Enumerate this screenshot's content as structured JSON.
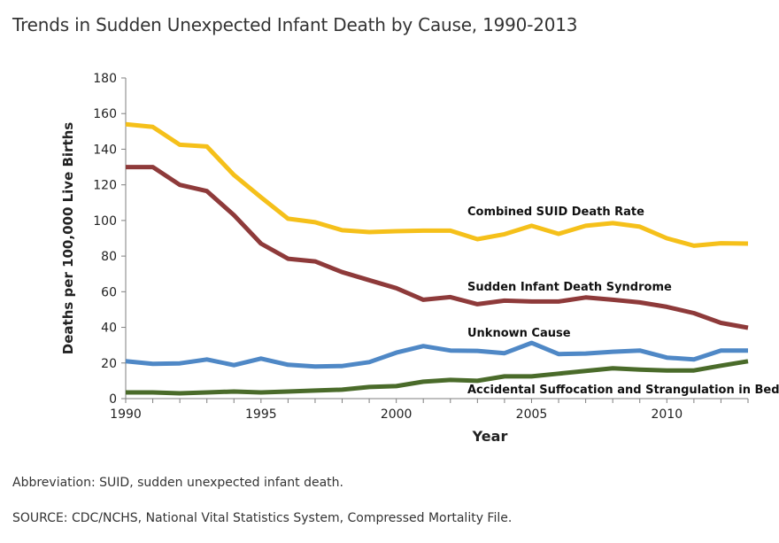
{
  "title": "Trends in Sudden Unexpected Infant Death by Cause, 1990-2013",
  "footnote_abbreviation": "Abbreviation: SUID, sudden unexpected infant death.",
  "footnote_source": "SOURCE: CDC/NCHS, National Vital Statistics System, Compressed Mortality File.",
  "chart_data": {
    "type": "line",
    "title": "Trends in Sudden Unexpected Infant Death by Cause, 1990-2013",
    "xlabel": "Year",
    "ylabel": "Deaths per 100,000 Live Births",
    "xlim": [
      1990,
      2013
    ],
    "ylim": [
      0,
      180
    ],
    "xticks": [
      1990,
      1995,
      2000,
      2005,
      2010
    ],
    "yticks": [
      0,
      20,
      40,
      60,
      80,
      100,
      120,
      140,
      160,
      180
    ],
    "grid": false,
    "legend": "inline labels",
    "x": [
      1990,
      1991,
      1992,
      1993,
      1994,
      1995,
      1996,
      1997,
      1998,
      1999,
      2000,
      2001,
      2002,
      2003,
      2004,
      2005,
      2006,
      2007,
      2008,
      2009,
      2010,
      2011,
      2012,
      2013
    ],
    "series": [
      {
        "name": "Combined SUID Death Rate",
        "color": "#F5C01A",
        "values": [
          154,
          152.5,
          142.5,
          141.5,
          125.5,
          113,
          101,
          99,
          94.5,
          93.5,
          94,
          94.3,
          94.3,
          89.5,
          92.3,
          97,
          92.5,
          97,
          98.5,
          96.5,
          90,
          85.8,
          87.2,
          87
        ]
      },
      {
        "name": "Sudden Infant Death Syndrome",
        "color": "#8E3A3A",
        "values": [
          130,
          130,
          120,
          116.5,
          103,
          87,
          78.5,
          77,
          71,
          66.5,
          62,
          55.5,
          57,
          53,
          55,
          54.5,
          54.5,
          56.8,
          55.5,
          54,
          51.5,
          48,
          42.5,
          39.8
        ]
      },
      {
        "name": "Unknown Cause",
        "color": "#4F88C6",
        "values": [
          21,
          19.5,
          19.8,
          22,
          18.8,
          22.5,
          19,
          18,
          18.3,
          20.5,
          25.8,
          29.5,
          27,
          26.8,
          25.5,
          31.3,
          25,
          25.3,
          26.3,
          27,
          23,
          22,
          27,
          27
        ]
      },
      {
        "name": "Accidental Suffocation and Strangulation in Bed",
        "color": "#4A6B2A",
        "values": [
          3.5,
          3.5,
          3,
          3.5,
          4,
          3.5,
          4,
          4.5,
          5,
          6.5,
          7,
          9.5,
          10.5,
          10,
          12.5,
          12.5,
          14,
          15.5,
          17,
          16.3,
          15.8,
          15.8,
          18.5,
          21
        ]
      }
    ]
  }
}
